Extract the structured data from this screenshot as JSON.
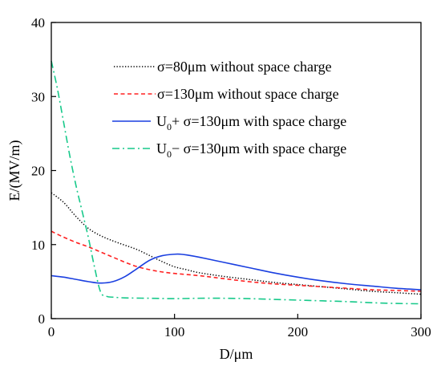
{
  "chart_data": {
    "type": "line",
    "xlabel": "D/μm",
    "ylabel": "E/(MV/m)",
    "xlim": [
      0,
      300
    ],
    "ylim": [
      0,
      40
    ],
    "x_ticks": [
      0,
      100,
      200,
      300
    ],
    "y_ticks": [
      0,
      10,
      20,
      30,
      40
    ],
    "grid": false,
    "legend_position": "top-right",
    "series": [
      {
        "name": "σ=80μm  without space charge",
        "name_main": "σ=80μm  without space charge",
        "color": "#000000",
        "style": "dotted",
        "x": [
          0,
          10,
          20,
          30,
          40,
          50,
          60,
          70,
          80,
          90,
          100,
          110,
          120,
          140,
          160,
          180,
          200,
          220,
          240,
          260,
          280,
          300
        ],
        "y": [
          17.0,
          15.7,
          13.8,
          12.2,
          11.2,
          10.5,
          9.9,
          9.3,
          8.5,
          7.7,
          7.0,
          6.6,
          6.2,
          5.7,
          5.3,
          4.9,
          4.6,
          4.3,
          4.0,
          3.7,
          3.5,
          3.3
        ]
      },
      {
        "name": "σ=130μm  without space charge",
        "name_main": "σ=130μm  without space charge",
        "color": "#ff2020",
        "style": "dashed",
        "x": [
          0,
          10,
          20,
          30,
          40,
          50,
          60,
          70,
          80,
          90,
          100,
          120,
          140,
          160,
          180,
          200,
          220,
          240,
          260,
          280,
          300
        ],
        "y": [
          11.8,
          11.0,
          10.3,
          9.7,
          9.0,
          8.3,
          7.6,
          7.0,
          6.6,
          6.3,
          6.1,
          5.8,
          5.4,
          5.0,
          4.7,
          4.5,
          4.3,
          4.1,
          3.9,
          3.8,
          3.7
        ]
      },
      {
        "name": "U0+  σ=130μm  with space charge",
        "name_prefix": "U",
        "name_sub": "0",
        "name_sign": "+",
        "name_main": "  σ=130μm  with space charge",
        "color": "#1a3fe0",
        "style": "solid",
        "x": [
          0,
          10,
          20,
          30,
          40,
          50,
          60,
          70,
          80,
          90,
          100,
          105,
          110,
          120,
          140,
          160,
          180,
          200,
          220,
          240,
          260,
          280,
          300
        ],
        "y": [
          5.8,
          5.6,
          5.3,
          5.0,
          4.8,
          5.0,
          5.7,
          6.8,
          7.9,
          8.5,
          8.7,
          8.7,
          8.6,
          8.3,
          7.6,
          6.9,
          6.2,
          5.6,
          5.1,
          4.7,
          4.4,
          4.1,
          3.9
        ]
      },
      {
        "name": "U0−  σ=130μm  with space charge",
        "name_prefix": "U",
        "name_sub": "0",
        "name_sign": "−",
        "name_main": "  σ=130μm  with space charge",
        "color": "#17c98a",
        "style": "dashdot",
        "x": [
          0,
          5,
          10,
          15,
          20,
          25,
          30,
          35,
          40,
          45,
          50,
          60,
          80,
          100,
          120,
          140,
          160,
          180,
          200,
          220,
          240,
          260,
          280,
          300
        ],
        "y": [
          34.8,
          31.0,
          26.5,
          22.0,
          18.0,
          14.5,
          11.0,
          7.0,
          3.6,
          3.0,
          2.9,
          2.8,
          2.75,
          2.7,
          2.75,
          2.75,
          2.7,
          2.6,
          2.5,
          2.4,
          2.3,
          2.15,
          2.05,
          2.0
        ]
      }
    ]
  }
}
